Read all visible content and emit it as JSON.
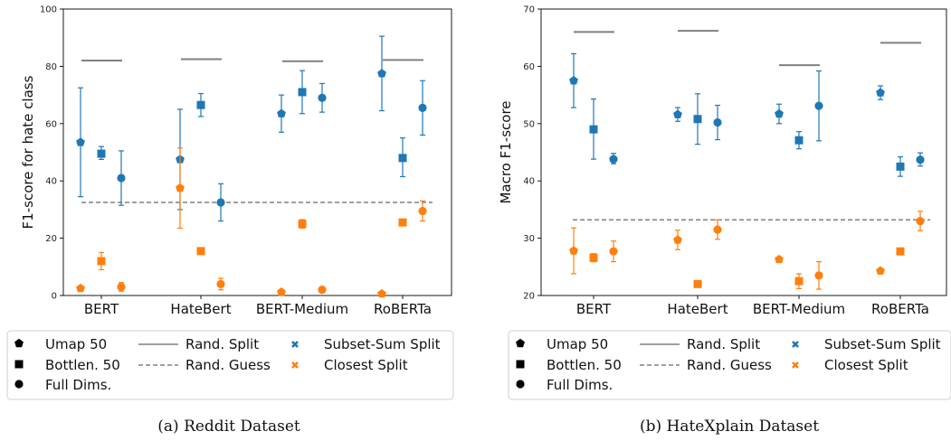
{
  "colors": {
    "subset": "#1f77b4",
    "closest": "#ff7f0e",
    "rand_split": "#808080",
    "rand_guess": "#808080"
  },
  "chart_data": [
    {
      "type": "scatter",
      "caption": "(a) Reddit Dataset",
      "ylabel": "F1-score for hate class",
      "ylim": [
        0,
        100
      ],
      "yticks": [
        0,
        20,
        40,
        60,
        80,
        100
      ],
      "categories": [
        "BERT",
        "HateBert",
        "BERT-Medium",
        "RoBERTa"
      ],
      "rand_guess": 32.5,
      "rand_split": [
        82,
        82.5,
        81.8,
        82.2
      ],
      "legend": {
        "markers": [
          "Umap 50",
          "Bottlen. 50",
          "Full Dims."
        ],
        "lines": [
          "Rand. Split",
          "Rand. Guess"
        ],
        "splits": [
          "Subset-Sum Split",
          "Closest Split"
        ]
      },
      "series": [
        {
          "name": "Subset-Sum Split",
          "color_key": "subset",
          "points": [
            {
              "cat": 0,
              "marker": "umap",
              "y": 53.5,
              "lo": 34.5,
              "hi": 72.5
            },
            {
              "cat": 0,
              "marker": "bottlen",
              "y": 49.5,
              "lo": 47.5,
              "hi": 52
            },
            {
              "cat": 0,
              "marker": "full",
              "y": 41,
              "lo": 31.5,
              "hi": 50.5
            },
            {
              "cat": 1,
              "marker": "umap",
              "y": 47.5,
              "lo": 30,
              "hi": 65
            },
            {
              "cat": 1,
              "marker": "bottlen",
              "y": 66.5,
              "lo": 62.5,
              "hi": 70.5
            },
            {
              "cat": 1,
              "marker": "full",
              "y": 32.5,
              "lo": 26,
              "hi": 39
            },
            {
              "cat": 2,
              "marker": "umap",
              "y": 63.5,
              "lo": 57,
              "hi": 70
            },
            {
              "cat": 2,
              "marker": "bottlen",
              "y": 71,
              "lo": 63.5,
              "hi": 78.5
            },
            {
              "cat": 2,
              "marker": "full",
              "y": 69,
              "lo": 64,
              "hi": 74
            },
            {
              "cat": 3,
              "marker": "umap",
              "y": 77.5,
              "lo": 64.5,
              "hi": 90.5
            },
            {
              "cat": 3,
              "marker": "bottlen",
              "y": 48,
              "lo": 41.5,
              "hi": 55
            },
            {
              "cat": 3,
              "marker": "full",
              "y": 65.5,
              "lo": 56,
              "hi": 75
            }
          ]
        },
        {
          "name": "Closest Split",
          "color_key": "closest",
          "points": [
            {
              "cat": 0,
              "marker": "umap",
              "y": 2.5,
              "lo": 2,
              "hi": 3
            },
            {
              "cat": 0,
              "marker": "bottlen",
              "y": 12,
              "lo": 9,
              "hi": 15
            },
            {
              "cat": 0,
              "marker": "full",
              "y": 3,
              "lo": 1.5,
              "hi": 4.5
            },
            {
              "cat": 1,
              "marker": "umap",
              "y": 37.5,
              "lo": 23.5,
              "hi": 51.5
            },
            {
              "cat": 1,
              "marker": "bottlen",
              "y": 15.5,
              "lo": 15,
              "hi": 16
            },
            {
              "cat": 1,
              "marker": "full",
              "y": 4,
              "lo": 2,
              "hi": 6
            },
            {
              "cat": 2,
              "marker": "umap",
              "y": 1.2,
              "lo": 0.8,
              "hi": 1.6
            },
            {
              "cat": 2,
              "marker": "bottlen",
              "y": 25,
              "lo": 23.5,
              "hi": 26.5
            },
            {
              "cat": 2,
              "marker": "full",
              "y": 2,
              "lo": 1.5,
              "hi": 2.5
            },
            {
              "cat": 3,
              "marker": "umap",
              "y": 0.6,
              "lo": 0.3,
              "hi": 0.9
            },
            {
              "cat": 3,
              "marker": "bottlen",
              "y": 25.5,
              "lo": 25,
              "hi": 26
            },
            {
              "cat": 3,
              "marker": "full",
              "y": 29.5,
              "lo": 26,
              "hi": 33
            }
          ]
        }
      ]
    },
    {
      "type": "scatter",
      "caption": "(b) HateXplain Dataset",
      "ylabel": "Macro F1-score",
      "ylim": [
        20,
        70
      ],
      "yticks": [
        20,
        30,
        40,
        50,
        60,
        70
      ],
      "categories": [
        "BERT",
        "HateBert",
        "BERT-Medium",
        "RoBERTa"
      ],
      "rand_guess": 33.2,
      "rand_split": [
        66,
        66.2,
        60.2,
        64.1
      ],
      "legend": {
        "markers": [
          "Umap 50",
          "Bottlen. 50",
          "Full Dims."
        ],
        "lines": [
          "Rand. Split",
          "Rand. Guess"
        ],
        "splits": [
          "Subset-Sum Split",
          "Closest Split"
        ]
      },
      "series": [
        {
          "name": "Subset-Sum Split",
          "color_key": "subset",
          "points": [
            {
              "cat": 0,
              "marker": "umap",
              "y": 57.5,
              "lo": 52.8,
              "hi": 62.2
            },
            {
              "cat": 0,
              "marker": "bottlen",
              "y": 49,
              "lo": 43.8,
              "hi": 54.3
            },
            {
              "cat": 0,
              "marker": "full",
              "y": 43.8,
              "lo": 43,
              "hi": 44.8
            },
            {
              "cat": 1,
              "marker": "umap",
              "y": 51.6,
              "lo": 50.4,
              "hi": 52.8
            },
            {
              "cat": 1,
              "marker": "bottlen",
              "y": 50.8,
              "lo": 46.4,
              "hi": 55.2
            },
            {
              "cat": 1,
              "marker": "full",
              "y": 50.2,
              "lo": 47.2,
              "hi": 53.2
            },
            {
              "cat": 2,
              "marker": "umap",
              "y": 51.7,
              "lo": 50,
              "hi": 53.4
            },
            {
              "cat": 2,
              "marker": "bottlen",
              "y": 47.1,
              "lo": 45.6,
              "hi": 48.6
            },
            {
              "cat": 2,
              "marker": "full",
              "y": 53.1,
              "lo": 47,
              "hi": 59.2
            },
            {
              "cat": 3,
              "marker": "umap",
              "y": 55.4,
              "lo": 54.2,
              "hi": 56.6
            },
            {
              "cat": 3,
              "marker": "bottlen",
              "y": 42.5,
              "lo": 40.8,
              "hi": 44.2
            },
            {
              "cat": 3,
              "marker": "full",
              "y": 43.7,
              "lo": 42.6,
              "hi": 44.9
            }
          ]
        },
        {
          "name": "Closest Split",
          "color_key": "closest",
          "points": [
            {
              "cat": 0,
              "marker": "umap",
              "y": 27.8,
              "lo": 23.8,
              "hi": 31.8
            },
            {
              "cat": 0,
              "marker": "bottlen",
              "y": 26.6,
              "lo": 25.9,
              "hi": 27.3
            },
            {
              "cat": 0,
              "marker": "full",
              "y": 27.7,
              "lo": 25.9,
              "hi": 29.5
            },
            {
              "cat": 1,
              "marker": "umap",
              "y": 29.7,
              "lo": 28,
              "hi": 31.4
            },
            {
              "cat": 1,
              "marker": "bottlen",
              "y": 22,
              "lo": 21.6,
              "hi": 22.4
            },
            {
              "cat": 1,
              "marker": "full",
              "y": 31.5,
              "lo": 29.8,
              "hi": 33.2
            },
            {
              "cat": 2,
              "marker": "umap",
              "y": 26.3,
              "lo": 26,
              "hi": 26.6
            },
            {
              "cat": 2,
              "marker": "bottlen",
              "y": 22.5,
              "lo": 21.2,
              "hi": 23.8
            },
            {
              "cat": 2,
              "marker": "full",
              "y": 23.5,
              "lo": 21.1,
              "hi": 25.9
            },
            {
              "cat": 3,
              "marker": "umap",
              "y": 24.3,
              "lo": 24,
              "hi": 24.6
            },
            {
              "cat": 3,
              "marker": "bottlen",
              "y": 27.7,
              "lo": 27.3,
              "hi": 28.1
            },
            {
              "cat": 3,
              "marker": "full",
              "y": 33,
              "lo": 31.3,
              "hi": 34.7
            }
          ]
        }
      ]
    }
  ]
}
